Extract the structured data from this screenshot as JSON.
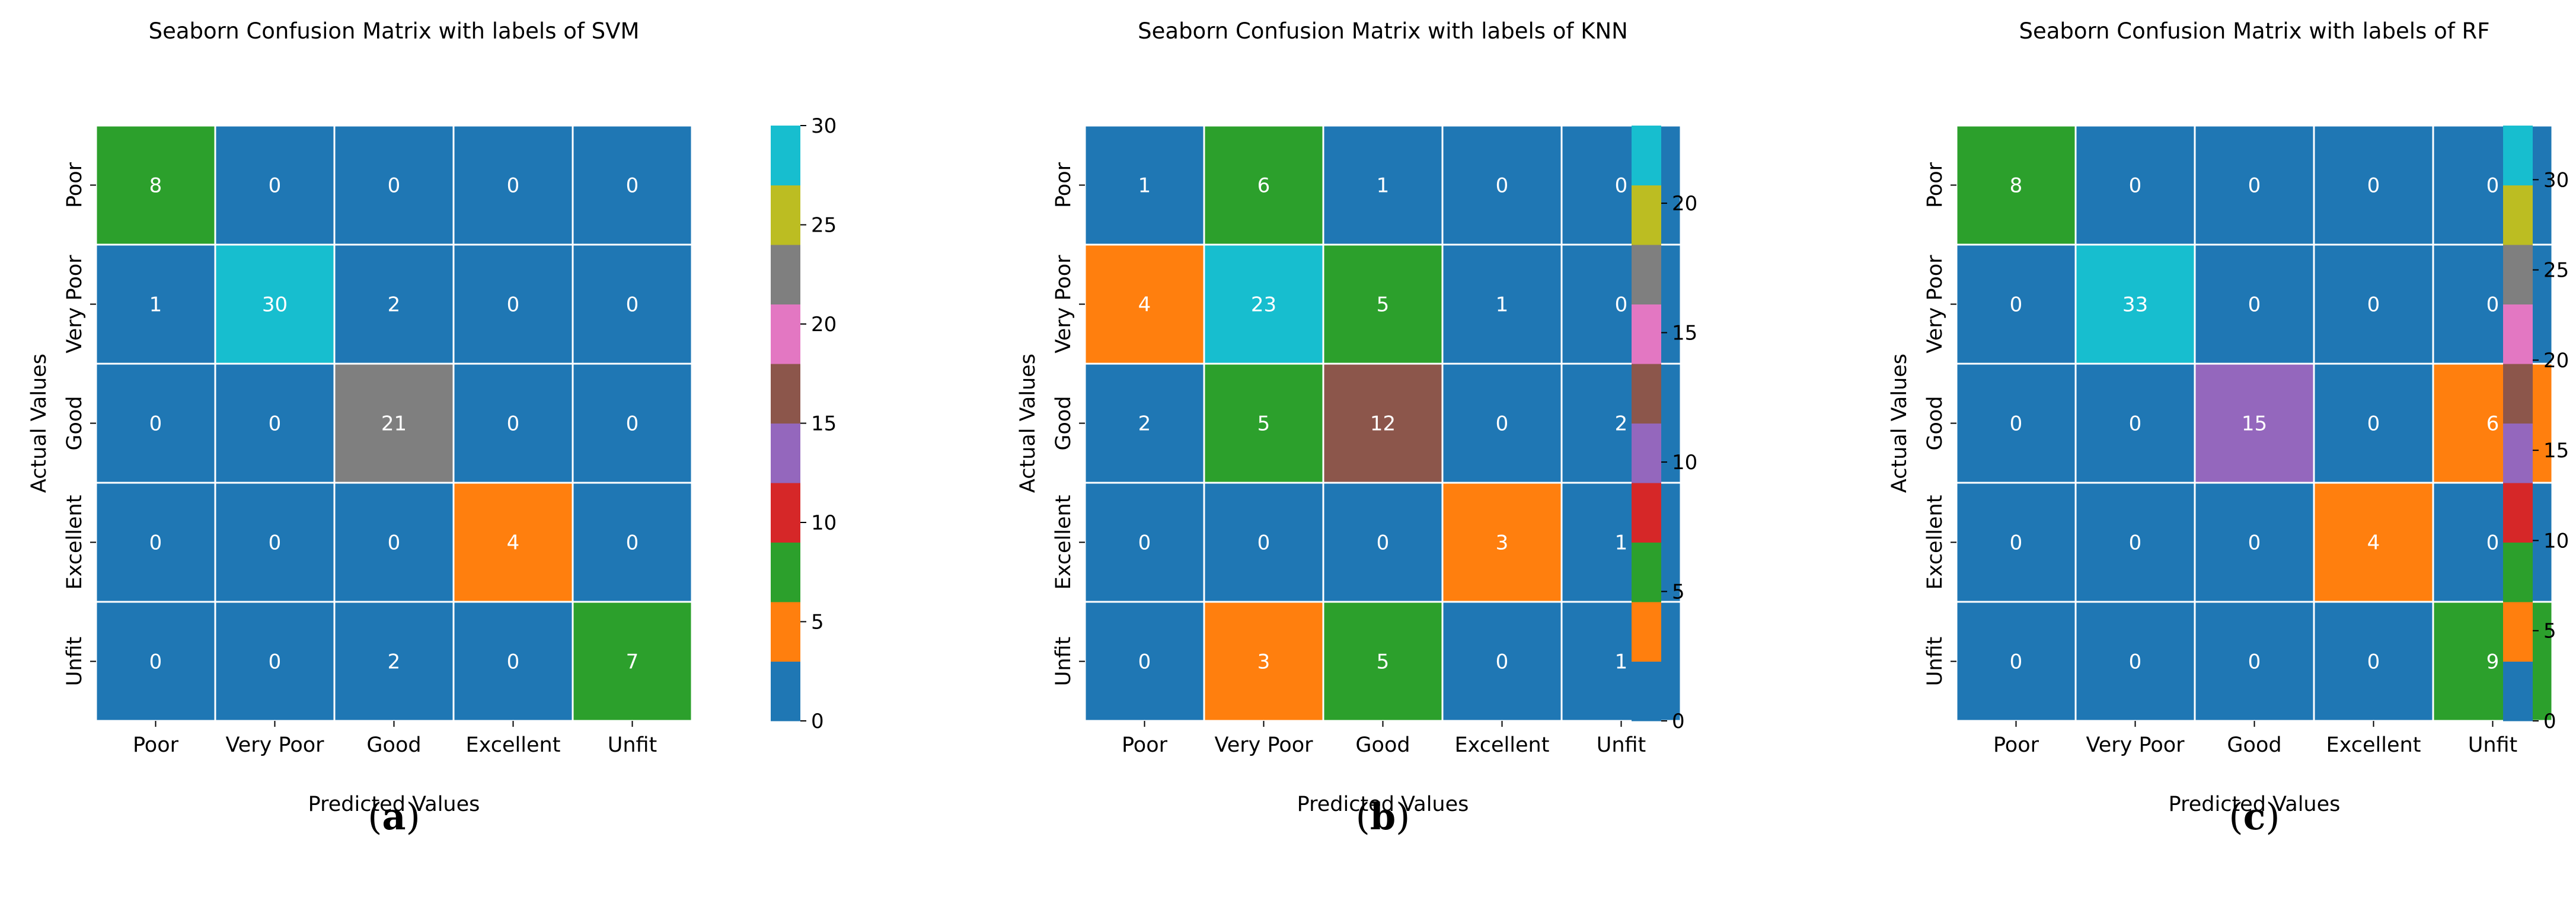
{
  "chart_data": [
    {
      "type": "heatmap",
      "title": "Seaborn Confusion Matrix with labels of SVM",
      "xlabel": "Predicted Values",
      "ylabel": "Actual Values",
      "x_categories": [
        "Poor",
        "Very Poor",
        "Good",
        "Excellent",
        "Unfit"
      ],
      "y_categories": [
        "Poor",
        "Very Poor",
        "Good",
        "Excellent",
        "Unfit"
      ],
      "values": [
        [
          8,
          0,
          0,
          0,
          0
        ],
        [
          1,
          30,
          2,
          0,
          0
        ],
        [
          0,
          0,
          21,
          0,
          0
        ],
        [
          0,
          0,
          0,
          4,
          0
        ],
        [
          0,
          0,
          2,
          0,
          7
        ]
      ],
      "vmin": 0,
      "vmax": 30,
      "colorbar_ticks": [
        0,
        5,
        10,
        15,
        20,
        25,
        30
      ],
      "panel_label": "a"
    },
    {
      "type": "heatmap",
      "title": "Seaborn Confusion Matrix with labels of KNN",
      "xlabel": "Predicted Values",
      "ylabel": "Actual Values",
      "x_categories": [
        "Poor",
        "Very Poor",
        "Good",
        "Excellent",
        "Unfit"
      ],
      "y_categories": [
        "Poor",
        "Very Poor",
        "Good",
        "Excellent",
        "Unfit"
      ],
      "values": [
        [
          1,
          6,
          1,
          0,
          0
        ],
        [
          4,
          23,
          5,
          1,
          0
        ],
        [
          2,
          5,
          12,
          0,
          2
        ],
        [
          0,
          0,
          0,
          3,
          1
        ],
        [
          0,
          3,
          5,
          0,
          1
        ]
      ],
      "vmin": 0,
      "vmax": 23,
      "colorbar_ticks": [
        0,
        5,
        10,
        15,
        20
      ],
      "panel_label": "b"
    },
    {
      "type": "heatmap",
      "title": "Seaborn Confusion Matrix with labels of RF",
      "xlabel": "Predicted Values",
      "ylabel": "Actual Values",
      "x_categories": [
        "Poor",
        "Very Poor",
        "Good",
        "Excellent",
        "Unfit"
      ],
      "y_categories": [
        "Poor",
        "Very Poor",
        "Good",
        "Excellent",
        "Unfit"
      ],
      "values": [
        [
          8,
          0,
          0,
          0,
          0
        ],
        [
          0,
          33,
          0,
          0,
          0
        ],
        [
          0,
          0,
          15,
          0,
          6
        ],
        [
          0,
          0,
          0,
          4,
          0
        ],
        [
          0,
          0,
          0,
          0,
          9
        ]
      ],
      "vmin": 0,
      "vmax": 33,
      "colorbar_ticks": [
        0,
        5,
        10,
        15,
        20,
        25,
        30
      ],
      "panel_label": "c"
    }
  ],
  "colormap": [
    "#1f77b4",
    "#ff7f0e",
    "#2ca02c",
    "#d62728",
    "#9467bd",
    "#8c564b",
    "#e377c2",
    "#7f7f7f",
    "#bcbd22",
    "#17becf"
  ],
  "annotation_color": "#ffffff",
  "grid_line_color": "#ffffff",
  "text_color": "#000000"
}
